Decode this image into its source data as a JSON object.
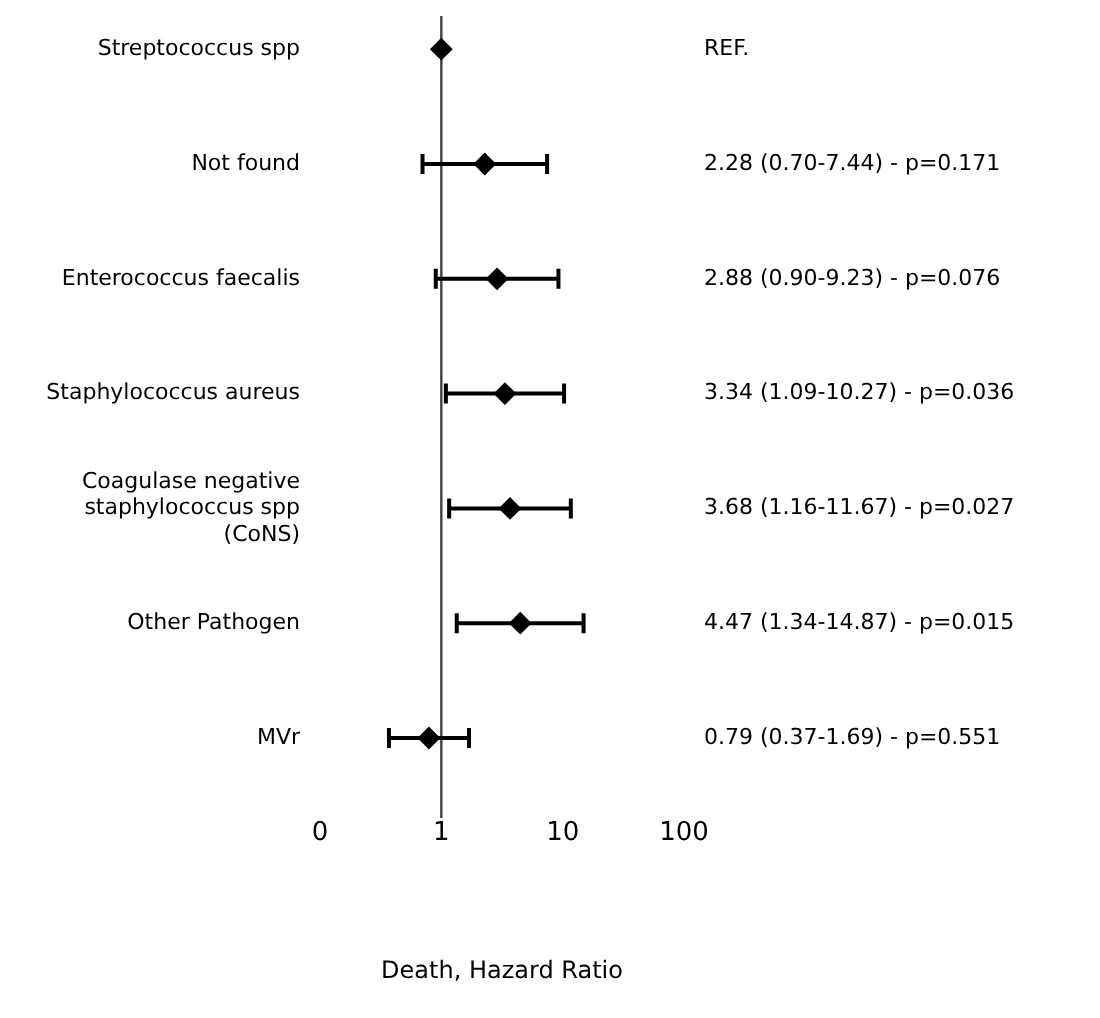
{
  "chart_data": {
    "type": "scatter",
    "orientation": "horizontal",
    "xlabel": "Death, Hazard Ratio",
    "categories": [
      "Streptococcus spp",
      "Not found",
      "Enterococcus faecalis",
      "Staphylococcus aureus",
      "Coagulase negative staphylococcus spp (CoNS)",
      "Other Pathogen",
      "MVr"
    ],
    "values": [
      1,
      2.28,
      2.88,
      3.34,
      3.68,
      4.47,
      0.79
    ],
    "errors": [
      null,
      [
        0.7,
        7.44
      ],
      [
        0.9,
        9.23
      ],
      [
        1.09,
        10.27
      ],
      [
        1.16,
        11.67
      ],
      [
        1.34,
        14.87
      ],
      [
        0.37,
        1.69
      ]
    ],
    "annotations": [
      "REF.",
      "2.28 (0.70-7.44) - p=0.171",
      "2.88 (0.90-9.23) - p=0.076",
      "3.34 (1.09-10.27) - p=0.036",
      "3.68 (1.16-11.67) - p=0.027",
      "4.47 (1.34-14.87) - p=0.015",
      "0.79 (0.37-1.69) - p=0.551"
    ],
    "color": "#000000",
    "marker": "diamond",
    "log": "x",
    "xlim": [
      0.1,
      100
    ],
    "xticks": [
      {
        "value": 0.1,
        "label": "0"
      },
      1,
      10,
      100
    ],
    "ref_lines": [
      {
        "axis": "x",
        "value": 1,
        "color": "#404040"
      }
    ],
    "grid": false,
    "legend": false
  }
}
